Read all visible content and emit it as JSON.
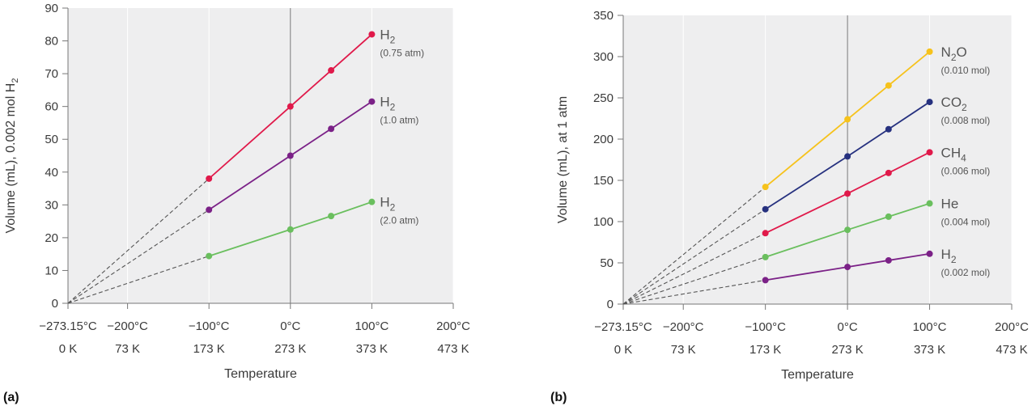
{
  "chart_data": [
    {
      "type": "line",
      "panel_label": "(a)",
      "xlabel": "Temperature",
      "ylabel_main": "Volume (mL), 0.002 mol H",
      "ylabel_sub": "2",
      "ylim": [
        0,
        90
      ],
      "xlim": [
        -273.15,
        200
      ],
      "yticks": [
        0,
        10,
        20,
        30,
        40,
        50,
        60,
        70,
        80,
        90
      ],
      "xticks": [
        {
          "value": -273.15,
          "celsius": "−273.15°C",
          "kelvin": "0 K"
        },
        {
          "value": -200,
          "celsius": "−200°C",
          "kelvin": "73 K"
        },
        {
          "value": -100,
          "celsius": "−100°C",
          "kelvin": "173 K"
        },
        {
          "value": 0,
          "celsius": "0°C",
          "kelvin": "273 K"
        },
        {
          "value": 100,
          "celsius": "100°C",
          "kelvin": "373 K"
        },
        {
          "value": 200,
          "celsius": "200°C",
          "kelvin": "473 K"
        }
      ],
      "zero_line_x": 0,
      "extrapolation_from": -273.15,
      "series": [
        {
          "key": "h2-075atm",
          "name": "H",
          "sub": "2",
          "note": "(0.75 atm)",
          "color": "#e0194a",
          "x": [
            -100,
            0,
            50,
            100
          ],
          "y": [
            38,
            60,
            71,
            82
          ]
        },
        {
          "key": "h2-10atm",
          "name": "H",
          "sub": "2",
          "note": "(1.0 atm)",
          "color": "#7b2187",
          "x": [
            -100,
            0,
            50,
            100
          ],
          "y": [
            28.5,
            45,
            53.2,
            61.5
          ]
        },
        {
          "key": "h2-20atm",
          "name": "H",
          "sub": "2",
          "note": "(2.0 atm)",
          "color": "#6abf5e",
          "x": [
            -100,
            0,
            50,
            100
          ],
          "y": [
            14.4,
            22.5,
            26.6,
            30.9
          ]
        }
      ]
    },
    {
      "type": "line",
      "panel_label": "(b)",
      "xlabel": "Temperature",
      "ylabel_main": "Volume (mL), at 1 atm",
      "ylabel_sub": "",
      "ylim": [
        0,
        350
      ],
      "xlim": [
        -273.15,
        200
      ],
      "yticks": [
        0,
        50,
        100,
        150,
        200,
        250,
        300,
        350
      ],
      "xticks": [
        {
          "value": -273.15,
          "celsius": "−273.15°C",
          "kelvin": "0 K"
        },
        {
          "value": -200,
          "celsius": "−200°C",
          "kelvin": "73 K"
        },
        {
          "value": -100,
          "celsius": "−100°C",
          "kelvin": "173 K"
        },
        {
          "value": 0,
          "celsius": "0°C",
          "kelvin": "273 K"
        },
        {
          "value": 100,
          "celsius": "100°C",
          "kelvin": "373 K"
        },
        {
          "value": 200,
          "celsius": "200°C",
          "kelvin": "473 K"
        }
      ],
      "zero_line_x": 0,
      "extrapolation_from": -273.15,
      "series": [
        {
          "key": "n2o",
          "name_parts": [
            [
              "N",
              ""
            ],
            [
              "2",
              "sub"
            ],
            [
              "O",
              ""
            ]
          ],
          "note": "(0.010 mol)",
          "color": "#f6c21b",
          "x": [
            -100,
            0,
            50,
            100
          ],
          "y": [
            142,
            224,
            265,
            306
          ]
        },
        {
          "key": "co2",
          "name_parts": [
            [
              "CO",
              ""
            ],
            [
              "2",
              "sub"
            ]
          ],
          "note": "(0.008 mol)",
          "color": "#26317f",
          "x": [
            -100,
            0,
            50,
            100
          ],
          "y": [
            115,
            179,
            212,
            245
          ]
        },
        {
          "key": "ch4",
          "name_parts": [
            [
              "CH",
              ""
            ],
            [
              "4",
              "sub"
            ]
          ],
          "note": "(0.006 mol)",
          "color": "#e0194a",
          "x": [
            -100,
            0,
            50,
            100
          ],
          "y": [
            86,
            134,
            159,
            184
          ]
        },
        {
          "key": "he",
          "name_parts": [
            [
              "He",
              ""
            ]
          ],
          "note": "(0.004 mol)",
          "color": "#6abf5e",
          "x": [
            -100,
            0,
            50,
            100
          ],
          "y": [
            57,
            90,
            106,
            122
          ]
        },
        {
          "key": "h2",
          "name_parts": [
            [
              "H",
              ""
            ],
            [
              "2",
              "sub"
            ]
          ],
          "note": "(0.002 mol)",
          "color": "#7b2187",
          "x": [
            -100,
            0,
            50,
            100
          ],
          "y": [
            29,
            45,
            53,
            61
          ]
        }
      ]
    }
  ],
  "colors": {
    "plot_bg": "#eeeeef",
    "grid": "#ffffff",
    "axis": "#777777",
    "dash": "#555555"
  }
}
